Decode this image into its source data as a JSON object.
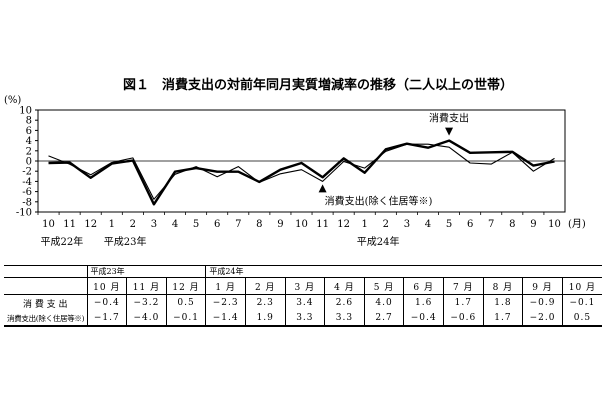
{
  "chart_data": {
    "type": "line",
    "title": "図１　消費支出の対前年同月実質増減率の推移（二人以上の世帯）",
    "ylabel": "(%)",
    "xlabel_unit": "(月)",
    "ylim": [
      -10,
      10
    ],
    "yticks": [
      10,
      8,
      6,
      4,
      2,
      0,
      -2,
      -4,
      -6,
      -8,
      -10
    ],
    "categories": [
      "10",
      "11",
      "12",
      "1",
      "2",
      "3",
      "4",
      "5",
      "6",
      "7",
      "8",
      "9",
      "10",
      "11",
      "12",
      "1",
      "2",
      "3",
      "4",
      "5",
      "6",
      "7",
      "8",
      "9",
      "10"
    ],
    "eras": [
      "平成22年",
      "平成23年",
      "平成24年"
    ],
    "series": [
      {
        "name": "消費支出",
        "values": [
          -0.4,
          -0.3,
          -3.3,
          -0.5,
          0.1,
          -8.5,
          -2.1,
          -1.4,
          -2.1,
          -2.1,
          -4.1,
          -1.7,
          -0.4,
          -3.2,
          0.5,
          -2.3,
          2.3,
          3.4,
          2.6,
          4.0,
          1.6,
          1.7,
          1.8,
          -0.9,
          -0.1
        ]
      },
      {
        "name": "消費支出(除く住居等※)",
        "values": [
          1.0,
          -0.6,
          -2.7,
          -0.3,
          0.6,
          -7.5,
          -2.6,
          -1.1,
          -3.1,
          -1.1,
          -4.2,
          -2.5,
          -1.7,
          -4.0,
          -0.1,
          -1.4,
          1.9,
          3.3,
          3.3,
          2.7,
          -0.4,
          -0.6,
          1.7,
          -2.0,
          0.5
        ]
      }
    ]
  },
  "table": {
    "era_labels": [
      "平成23年",
      "平成24年"
    ],
    "months": [
      "10 月",
      "11 月",
      "12 月",
      "1 月",
      "2 月",
      "3 月",
      "4 月",
      "5 月",
      "6 月",
      "7 月",
      "8 月",
      "9 月",
      "10 月"
    ],
    "rows": [
      {
        "label": "消 費 支 出",
        "values": [
          "−0.4",
          "−3.2",
          "0.5",
          "−2.3",
          "2.3",
          "3.4",
          "2.6",
          "4.0",
          "1.6",
          "1.7",
          "1.8",
          "−0.9",
          "−0.1"
        ]
      },
      {
        "label": "消費支出(除く住居等※)",
        "values": [
          "−1.7",
          "−4.0",
          "−0.1",
          "−1.4",
          "1.9",
          "3.3",
          "3.3",
          "2.7",
          "−0.4",
          "−0.6",
          "1.7",
          "−2.0",
          "0.5"
        ]
      }
    ]
  }
}
